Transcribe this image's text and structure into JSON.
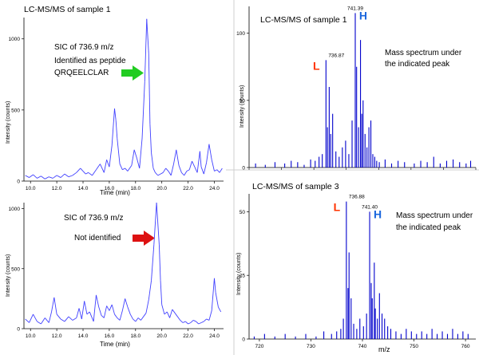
{
  "chart_data": [
    {
      "type": "line",
      "panel": "top-left",
      "title": "LC-MS/MS of sample 1",
      "annotations": [
        "SIC of 736.9 m/z",
        "Identified as peptide",
        "QRQEELCLAR"
      ],
      "arrow_color": "#22cc22",
      "xlabel": "Time (min)",
      "ylabel": "Intensity (counts)",
      "xlim": [
        9.5,
        24.7
      ],
      "ylim": [
        0,
        1150
      ],
      "xticks": [
        "10.0",
        "12.0",
        "14.0",
        "16.0",
        "18.0",
        "20.0",
        "22.0",
        "24.0"
      ],
      "yticks": [
        "0",
        "500",
        "1000"
      ],
      "series": [
        {
          "color": "#4040ff",
          "x": [
            9.6,
            9.9,
            10.2,
            10.5,
            10.8,
            11.1,
            11.4,
            11.7,
            12.0,
            12.3,
            12.6,
            12.9,
            13.2,
            13.5,
            13.8,
            14.0,
            14.2,
            14.4,
            14.7,
            15.0,
            15.3,
            15.6,
            15.8,
            16.0,
            16.2,
            16.4,
            16.5,
            16.6,
            16.8,
            17.0,
            17.2,
            17.4,
            17.7,
            17.9,
            18.1,
            18.3,
            18.5,
            18.7,
            18.85,
            19.0,
            19.1,
            19.2,
            19.35,
            19.5,
            19.7,
            19.9,
            20.1,
            20.3,
            20.5,
            20.7,
            20.9,
            21.1,
            21.3,
            21.5,
            21.7,
            21.9,
            22.1,
            22.3,
            22.5,
            22.7,
            22.9,
            23.0,
            23.2,
            23.4,
            23.6,
            23.8,
            24.0,
            24.2,
            24.4,
            24.6
          ],
          "values": [
            40,
            25,
            45,
            20,
            35,
            15,
            30,
            20,
            40,
            25,
            50,
            30,
            40,
            60,
            90,
            70,
            50,
            60,
            40,
            80,
            120,
            60,
            150,
            100,
            250,
            510,
            430,
            300,
            120,
            80,
            90,
            70,
            110,
            220,
            160,
            90,
            300,
            700,
            1140,
            900,
            400,
            200,
            90,
            60,
            40,
            50,
            60,
            90,
            70,
            40,
            120,
            220,
            110,
            60,
            40,
            70,
            80,
            140,
            100,
            60,
            210,
            100,
            50,
            130,
            260,
            150,
            70,
            80,
            60,
            90
          ]
        }
      ]
    },
    {
      "type": "line",
      "panel": "bottom-left",
      "annotations": [
        "SIC of 736.9 m/z",
        "Not identified"
      ],
      "arrow_color": "#dd1111",
      "xlabel": "Time (min)",
      "ylabel": "Intensity (counts)",
      "xlim": [
        9.5,
        24.7
      ],
      "ylim": [
        0,
        1050
      ],
      "xticks": [
        "10.0",
        "12.0",
        "14.0",
        "16.0",
        "18.0",
        "20.0",
        "22.0",
        "24.0"
      ],
      "yticks": [
        "0",
        "500",
        "1000"
      ],
      "series": [
        {
          "color": "#4040ff",
          "x": [
            9.6,
            9.9,
            10.2,
            10.5,
            10.8,
            11.1,
            11.4,
            11.6,
            11.8,
            12.0,
            12.3,
            12.6,
            12.9,
            13.2,
            13.5,
            13.7,
            13.9,
            14.1,
            14.3,
            14.5,
            14.8,
            15.0,
            15.2,
            15.4,
            15.6,
            15.8,
            16.0,
            16.2,
            16.4,
            16.6,
            16.8,
            17.0,
            17.2,
            17.4,
            17.6,
            17.8,
            18.0,
            18.2,
            18.4,
            18.6,
            18.8,
            19.0,
            19.2,
            19.4,
            19.6,
            19.8,
            19.9,
            20.0,
            20.2,
            20.4,
            20.6,
            20.8,
            21.0,
            21.2,
            21.4,
            21.6,
            21.8,
            22.0,
            22.2,
            22.4,
            22.6,
            22.8,
            23.0,
            23.2,
            23.4,
            23.6,
            23.8,
            24.0,
            24.1,
            24.3,
            24.5
          ],
          "values": [
            80,
            50,
            120,
            60,
            40,
            90,
            50,
            140,
            260,
            120,
            80,
            60,
            100,
            70,
            90,
            170,
            80,
            230,
            120,
            140,
            60,
            280,
            180,
            110,
            90,
            190,
            150,
            200,
            120,
            90,
            70,
            150,
            250,
            180,
            120,
            80,
            60,
            90,
            70,
            100,
            130,
            240,
            400,
            700,
            1050,
            700,
            400,
            200,
            120,
            140,
            90,
            160,
            130,
            100,
            70,
            50,
            60,
            40,
            50,
            70,
            60,
            40,
            50,
            60,
            80,
            70,
            150,
            420,
            300,
            180,
            140
          ]
        }
      ]
    },
    {
      "type": "bar",
      "panel": "top-right",
      "title": "LC-MS/MS of sample 1",
      "annotations": [
        "Mass spectrum under",
        "the indicated peak"
      ],
      "peak_labels": [
        {
          "mz": 736.87,
          "text": "736.87",
          "tag": "L",
          "tag_color": "#ff3300"
        },
        {
          "mz": 741.39,
          "text": "741.39",
          "tag": "H",
          "tag_color": "#1a66dd"
        }
      ],
      "xlabel": "",
      "ylabel": "Intensity (counts)",
      "xlim": [
        725,
        760
      ],
      "ylim": [
        0,
        120
      ],
      "yticks": [
        "0",
        "50",
        "100"
      ],
      "x": [
        726,
        727.5,
        729,
        730.5,
        731.5,
        732.5,
        733.5,
        734.5,
        735.2,
        735.8,
        736.3,
        736.87,
        737.1,
        737.37,
        737.6,
        737.9,
        738.4,
        738.9,
        739.4,
        739.9,
        740.4,
        740.9,
        741.39,
        741.6,
        741.9,
        742.2,
        742.4,
        742.6,
        742.9,
        743.2,
        743.5,
        743.8,
        744.1,
        744.4,
        744.7,
        745.1,
        746,
        747,
        748,
        749,
        750.5,
        751.5,
        752.5,
        753.5,
        754.5,
        755.5,
        756.5,
        757.5,
        758.5,
        759.2
      ],
      "values": [
        3,
        2,
        4,
        3,
        5,
        4,
        2,
        6,
        5,
        8,
        10,
        80,
        30,
        60,
        25,
        40,
        12,
        8,
        15,
        20,
        10,
        35,
        115,
        75,
        30,
        95,
        40,
        50,
        25,
        15,
        30,
        35,
        10,
        8,
        5,
        4,
        6,
        3,
        5,
        4,
        3,
        5,
        4,
        8,
        3,
        5,
        6,
        4,
        3,
        5
      ]
    },
    {
      "type": "bar",
      "panel": "bottom-right",
      "title": "LC-MS/MS of sample 3",
      "annotations": [
        "Mass spectrum under",
        "the indicated peak"
      ],
      "peak_labels": [
        {
          "mz": 736.88,
          "text": "736.88",
          "tag": "L",
          "tag_color": "#ff3300"
        },
        {
          "mz": 741.4,
          "text": "741.40",
          "tag": "H",
          "tag_color": "#1a66dd"
        }
      ],
      "xlabel": "m/z",
      "ylabel": "Intensity (counts)",
      "xlim": [
        718,
        762
      ],
      "ylim": [
        0,
        57
      ],
      "xticks": [
        "720",
        "730",
        "740",
        "750",
        "760"
      ],
      "yticks": [
        "0",
        "25",
        "50"
      ],
      "x": [
        719,
        721,
        723,
        725,
        727,
        729,
        731,
        732.5,
        734,
        735,
        735.8,
        736.3,
        736.88,
        737.2,
        737.4,
        737.8,
        738.3,
        738.9,
        739.5,
        740.2,
        740.8,
        741.4,
        741.7,
        741.9,
        742.3,
        742.5,
        742.9,
        743.3,
        743.8,
        744.3,
        744.9,
        745.5,
        746.5,
        747.5,
        748.5,
        749.5,
        750.5,
        751.5,
        752.5,
        753.5,
        754.5,
        755.5,
        756.5,
        757.5,
        758.5,
        759.5,
        760.5
      ],
      "values": [
        1,
        2,
        1,
        2,
        1,
        2,
        1,
        3,
        2,
        3,
        4,
        8,
        54,
        20,
        34,
        16,
        6,
        4,
        8,
        5,
        10,
        50,
        22,
        16,
        30,
        12,
        8,
        18,
        10,
        8,
        5,
        4,
        3,
        2,
        4,
        3,
        2,
        3,
        2,
        4,
        2,
        3,
        2,
        4,
        2,
        3,
        2
      ]
    }
  ]
}
